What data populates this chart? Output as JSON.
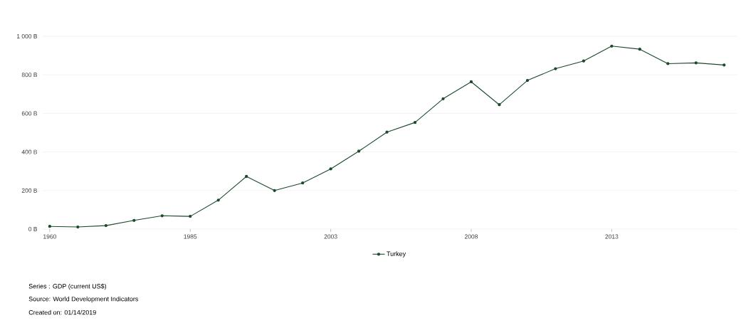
{
  "chart_data": {
    "type": "line",
    "categories": [
      "1960",
      null,
      null,
      null,
      null,
      "1985",
      null,
      null,
      null,
      null,
      "2003",
      null,
      null,
      null,
      null,
      "2008",
      null,
      null,
      null,
      null,
      "2013",
      null,
      null,
      null,
      null
    ],
    "series": [
      {
        "name": "Turkey",
        "color": "#1b4a2c",
        "values": [
          14,
          11,
          18,
          45,
          69,
          66,
          150,
          273,
          200,
          239,
          312,
          404,
          503,
          553,
          676,
          764,
          645,
          771,
          832,
          872,
          949,
          933,
          858,
          862,
          851
        ]
      }
    ],
    "ylim": [
      0,
      1000
    ],
    "yticks": [
      {
        "value": 0,
        "label": "0 B"
      },
      {
        "value": 200,
        "label": "200 B"
      },
      {
        "value": 400,
        "label": "400 B"
      },
      {
        "value": 600,
        "label": "600 B"
      },
      {
        "value": 800,
        "label": "800 B"
      },
      {
        "value": 1000,
        "label": "1 000 B"
      }
    ],
    "grid": "y",
    "legend": "bottom",
    "marker": "circle",
    "annotations": [
      "Series : GDP (current US$)",
      "Source: World Development Indicators",
      "Created on: 01/14/2019"
    ]
  }
}
